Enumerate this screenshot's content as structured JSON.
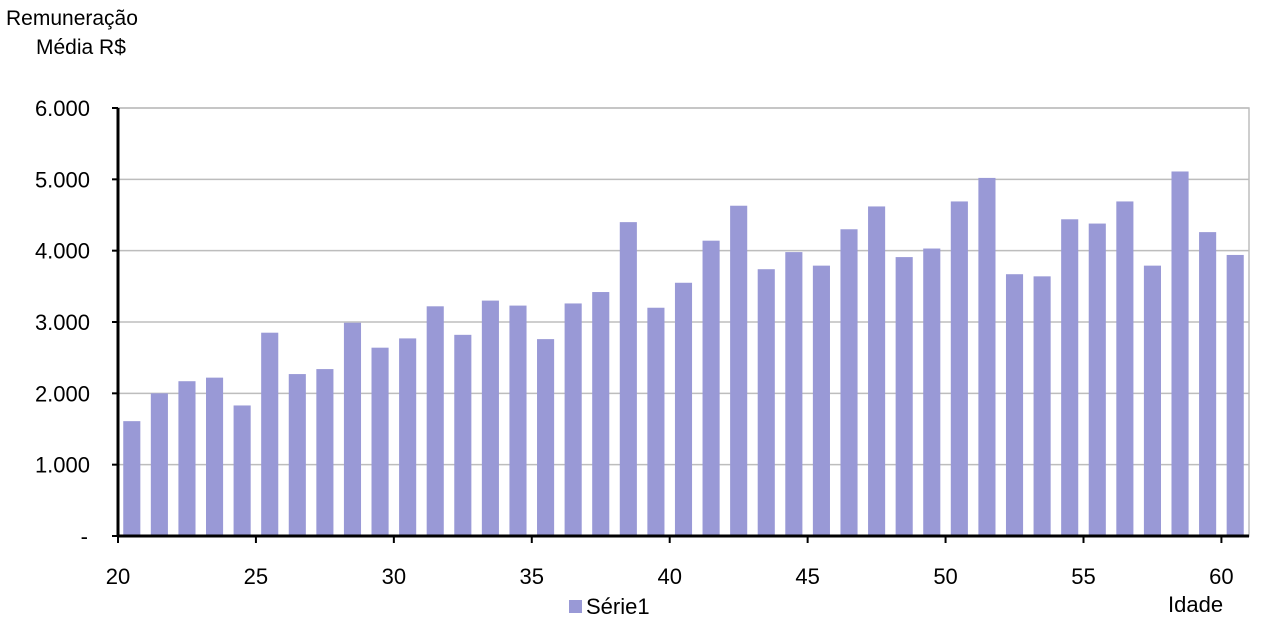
{
  "chart_data": {
    "type": "bar",
    "ylabel_line1": "Remuneração",
    "ylabel_line2": "Média R$",
    "xlabel": "Idade",
    "ylim": [
      0,
      6000
    ],
    "yticks": [
      0,
      1000,
      2000,
      3000,
      4000,
      5000,
      6000
    ],
    "ytick_labels": [
      "-",
      "1.000",
      "2.000",
      "3.000",
      "4.000",
      "5.000",
      "6.000"
    ],
    "xticks": [
      20,
      25,
      30,
      35,
      40,
      45,
      50,
      55,
      60
    ],
    "xtick_labels": [
      "20",
      "25",
      "30",
      "35",
      "40",
      "45",
      "50",
      "55",
      "60"
    ],
    "grid": true,
    "legend_placement": "bottom",
    "bar_color": "#9999d6",
    "categories": [
      20,
      21,
      22,
      23,
      24,
      25,
      26,
      27,
      28,
      29,
      30,
      31,
      32,
      33,
      34,
      35,
      36,
      37,
      38,
      39,
      40,
      41,
      42,
      43,
      44,
      45,
      46,
      47,
      48,
      49,
      50,
      51,
      52,
      53,
      54,
      55,
      56,
      57,
      58,
      59,
      60
    ],
    "series": [
      {
        "name": "Série1",
        "values": [
          1610,
          2000,
          2170,
          2220,
          1830,
          2850,
          2270,
          2340,
          2990,
          2640,
          2770,
          3220,
          2820,
          3300,
          3230,
          2760,
          3260,
          3420,
          4400,
          3200,
          3550,
          4140,
          4630,
          3740,
          3980,
          3790,
          4300,
          4620,
          3910,
          4030,
          4690,
          5020,
          3670,
          3640,
          4440,
          4380,
          4690,
          3790,
          5110,
          4260,
          3940
        ]
      }
    ]
  }
}
